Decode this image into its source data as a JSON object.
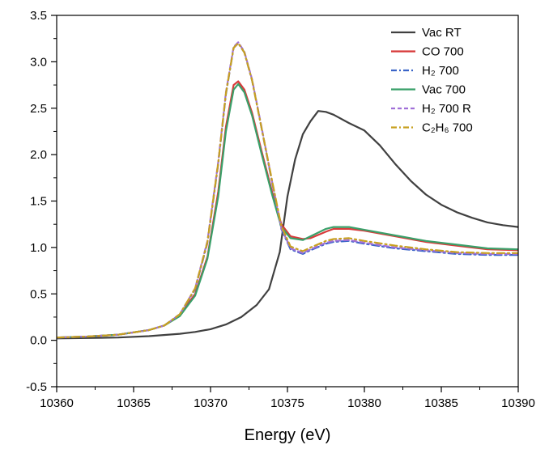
{
  "chart_data": {
    "type": "line",
    "title": "",
    "xlabel": "Energy (eV)",
    "ylabel": "",
    "xlim": [
      10360,
      10390
    ],
    "ylim": [
      -0.5,
      3.5
    ],
    "xticks": [
      "10360",
      "10365",
      "10370",
      "10375",
      "10380",
      "10385",
      "10390"
    ],
    "yticks": [
      "-0.5",
      "0.0",
      "0.5",
      "1.0",
      "1.5",
      "2.0",
      "2.5",
      "3.0",
      "3.5"
    ],
    "grid": false,
    "legend": "top-right",
    "series": [
      {
        "name": "Vac RT",
        "color": "#404040",
        "dash": "solid",
        "points": [
          [
            10360,
            0.02
          ],
          [
            10362,
            0.025
          ],
          [
            10364,
            0.03
          ],
          [
            10366,
            0.045
          ],
          [
            10368,
            0.07
          ],
          [
            10369,
            0.09
          ],
          [
            10370,
            0.12
          ],
          [
            10371,
            0.17
          ],
          [
            10372,
            0.25
          ],
          [
            10373,
            0.38
          ],
          [
            10373.8,
            0.55
          ],
          [
            10374.5,
            0.95
          ],
          [
            10375,
            1.55
          ],
          [
            10375.5,
            1.95
          ],
          [
            10376,
            2.22
          ],
          [
            10376.5,
            2.36
          ],
          [
            10377,
            2.47
          ],
          [
            10377.5,
            2.46
          ],
          [
            10378,
            2.43
          ],
          [
            10379,
            2.34
          ],
          [
            10380,
            2.26
          ],
          [
            10381,
            2.1
          ],
          [
            10382,
            1.9
          ],
          [
            10383,
            1.72
          ],
          [
            10384,
            1.57
          ],
          [
            10385,
            1.46
          ],
          [
            10386,
            1.38
          ],
          [
            10387,
            1.32
          ],
          [
            10388,
            1.27
          ],
          [
            10389,
            1.24
          ],
          [
            10390,
            1.22
          ]
        ]
      },
      {
        "name": "CO 700",
        "color": "#d83a3a",
        "dash": "solid",
        "points": [
          [
            10360,
            0.03
          ],
          [
            10362,
            0.04
          ],
          [
            10364,
            0.06
          ],
          [
            10366,
            0.11
          ],
          [
            10367,
            0.16
          ],
          [
            10368,
            0.27
          ],
          [
            10369,
            0.5
          ],
          [
            10369.8,
            0.9
          ],
          [
            10370.5,
            1.6
          ],
          [
            10371,
            2.3
          ],
          [
            10371.5,
            2.75
          ],
          [
            10371.8,
            2.79
          ],
          [
            10372.2,
            2.7
          ],
          [
            10372.7,
            2.45
          ],
          [
            10373.3,
            2.05
          ],
          [
            10374,
            1.6
          ],
          [
            10374.6,
            1.25
          ],
          [
            10375.2,
            1.12
          ],
          [
            10376,
            1.09
          ],
          [
            10376.5,
            1.1
          ],
          [
            10377.5,
            1.17
          ],
          [
            10378,
            1.2
          ],
          [
            10379,
            1.2
          ],
          [
            10380,
            1.18
          ],
          [
            10382,
            1.12
          ],
          [
            10384,
            1.06
          ],
          [
            10386,
            1.02
          ],
          [
            10388,
            0.98
          ],
          [
            10390,
            0.97
          ]
        ]
      },
      {
        "name": "H₂ 700",
        "color": "#3a64c8",
        "dash": "dashdot",
        "points": [
          [
            10360,
            0.03
          ],
          [
            10362,
            0.04
          ],
          [
            10364,
            0.06
          ],
          [
            10366,
            0.11
          ],
          [
            10367,
            0.16
          ],
          [
            10368,
            0.28
          ],
          [
            10369,
            0.55
          ],
          [
            10369.8,
            1.05
          ],
          [
            10370.5,
            1.9
          ],
          [
            10371,
            2.65
          ],
          [
            10371.5,
            3.15
          ],
          [
            10371.8,
            3.2
          ],
          [
            10372.2,
            3.1
          ],
          [
            10372.7,
            2.8
          ],
          [
            10373.3,
            2.3
          ],
          [
            10374,
            1.7
          ],
          [
            10374.6,
            1.2
          ],
          [
            10375.2,
            0.98
          ],
          [
            10376,
            0.93
          ],
          [
            10376.5,
            0.97
          ],
          [
            10377.5,
            1.04
          ],
          [
            10378,
            1.06
          ],
          [
            10379,
            1.07
          ],
          [
            10380,
            1.04
          ],
          [
            10382,
            0.99
          ],
          [
            10384,
            0.96
          ],
          [
            10386,
            0.93
          ],
          [
            10388,
            0.92
          ],
          [
            10390,
            0.92
          ]
        ]
      },
      {
        "name": "Vac 700",
        "color": "#3aa06a",
        "dash": "solid",
        "points": [
          [
            10360,
            0.03
          ],
          [
            10362,
            0.04
          ],
          [
            10364,
            0.06
          ],
          [
            10366,
            0.11
          ],
          [
            10367,
            0.16
          ],
          [
            10368,
            0.26
          ],
          [
            10369,
            0.48
          ],
          [
            10369.8,
            0.88
          ],
          [
            10370.5,
            1.55
          ],
          [
            10371,
            2.25
          ],
          [
            10371.5,
            2.7
          ],
          [
            10371.8,
            2.76
          ],
          [
            10372.2,
            2.67
          ],
          [
            10372.7,
            2.42
          ],
          [
            10373.3,
            2.02
          ],
          [
            10374,
            1.57
          ],
          [
            10374.6,
            1.22
          ],
          [
            10375.2,
            1.1
          ],
          [
            10376,
            1.08
          ],
          [
            10376.5,
            1.12
          ],
          [
            10377.5,
            1.2
          ],
          [
            10378,
            1.22
          ],
          [
            10379,
            1.22
          ],
          [
            10380,
            1.19
          ],
          [
            10382,
            1.13
          ],
          [
            10384,
            1.07
          ],
          [
            10386,
            1.03
          ],
          [
            10388,
            0.99
          ],
          [
            10390,
            0.98
          ]
        ]
      },
      {
        "name": "H₂ 700 R",
        "color": "#a070d8",
        "dash": "dash",
        "points": [
          [
            10360,
            0.03
          ],
          [
            10362,
            0.04
          ],
          [
            10364,
            0.06
          ],
          [
            10366,
            0.11
          ],
          [
            10367,
            0.16
          ],
          [
            10368,
            0.28
          ],
          [
            10369,
            0.56
          ],
          [
            10369.8,
            1.07
          ],
          [
            10370.5,
            1.92
          ],
          [
            10371,
            2.67
          ],
          [
            10371.5,
            3.16
          ],
          [
            10371.8,
            3.21
          ],
          [
            10372.2,
            3.11
          ],
          [
            10372.7,
            2.81
          ],
          [
            10373.3,
            2.31
          ],
          [
            10374,
            1.71
          ],
          [
            10374.6,
            1.21
          ],
          [
            10375.2,
            0.99
          ],
          [
            10376,
            0.94
          ],
          [
            10376.5,
            0.98
          ],
          [
            10377.5,
            1.05
          ],
          [
            10378,
            1.07
          ],
          [
            10379,
            1.08
          ],
          [
            10380,
            1.05
          ],
          [
            10382,
            1.0
          ],
          [
            10384,
            0.97
          ],
          [
            10386,
            0.94
          ],
          [
            10388,
            0.93
          ],
          [
            10390,
            0.93
          ]
        ]
      },
      {
        "name": "C₂H₆ 700",
        "color": "#c8a020",
        "dash": "dashdot",
        "points": [
          [
            10360,
            0.03
          ],
          [
            10362,
            0.04
          ],
          [
            10364,
            0.06
          ],
          [
            10366,
            0.11
          ],
          [
            10367,
            0.16
          ],
          [
            10368,
            0.28
          ],
          [
            10369,
            0.56
          ],
          [
            10369.8,
            1.06
          ],
          [
            10370.5,
            1.91
          ],
          [
            10371,
            2.66
          ],
          [
            10371.5,
            3.15
          ],
          [
            10371.8,
            3.2
          ],
          [
            10372.2,
            3.1
          ],
          [
            10372.7,
            2.8
          ],
          [
            10373.3,
            2.3
          ],
          [
            10374,
            1.72
          ],
          [
            10374.6,
            1.23
          ],
          [
            10375.2,
            1.01
          ],
          [
            10376,
            0.96
          ],
          [
            10376.5,
            1.0
          ],
          [
            10377.5,
            1.07
          ],
          [
            10378,
            1.09
          ],
          [
            10379,
            1.1
          ],
          [
            10380,
            1.07
          ],
          [
            10382,
            1.02
          ],
          [
            10384,
            0.98
          ],
          [
            10386,
            0.95
          ],
          [
            10388,
            0.94
          ],
          [
            10390,
            0.94
          ]
        ]
      }
    ]
  }
}
